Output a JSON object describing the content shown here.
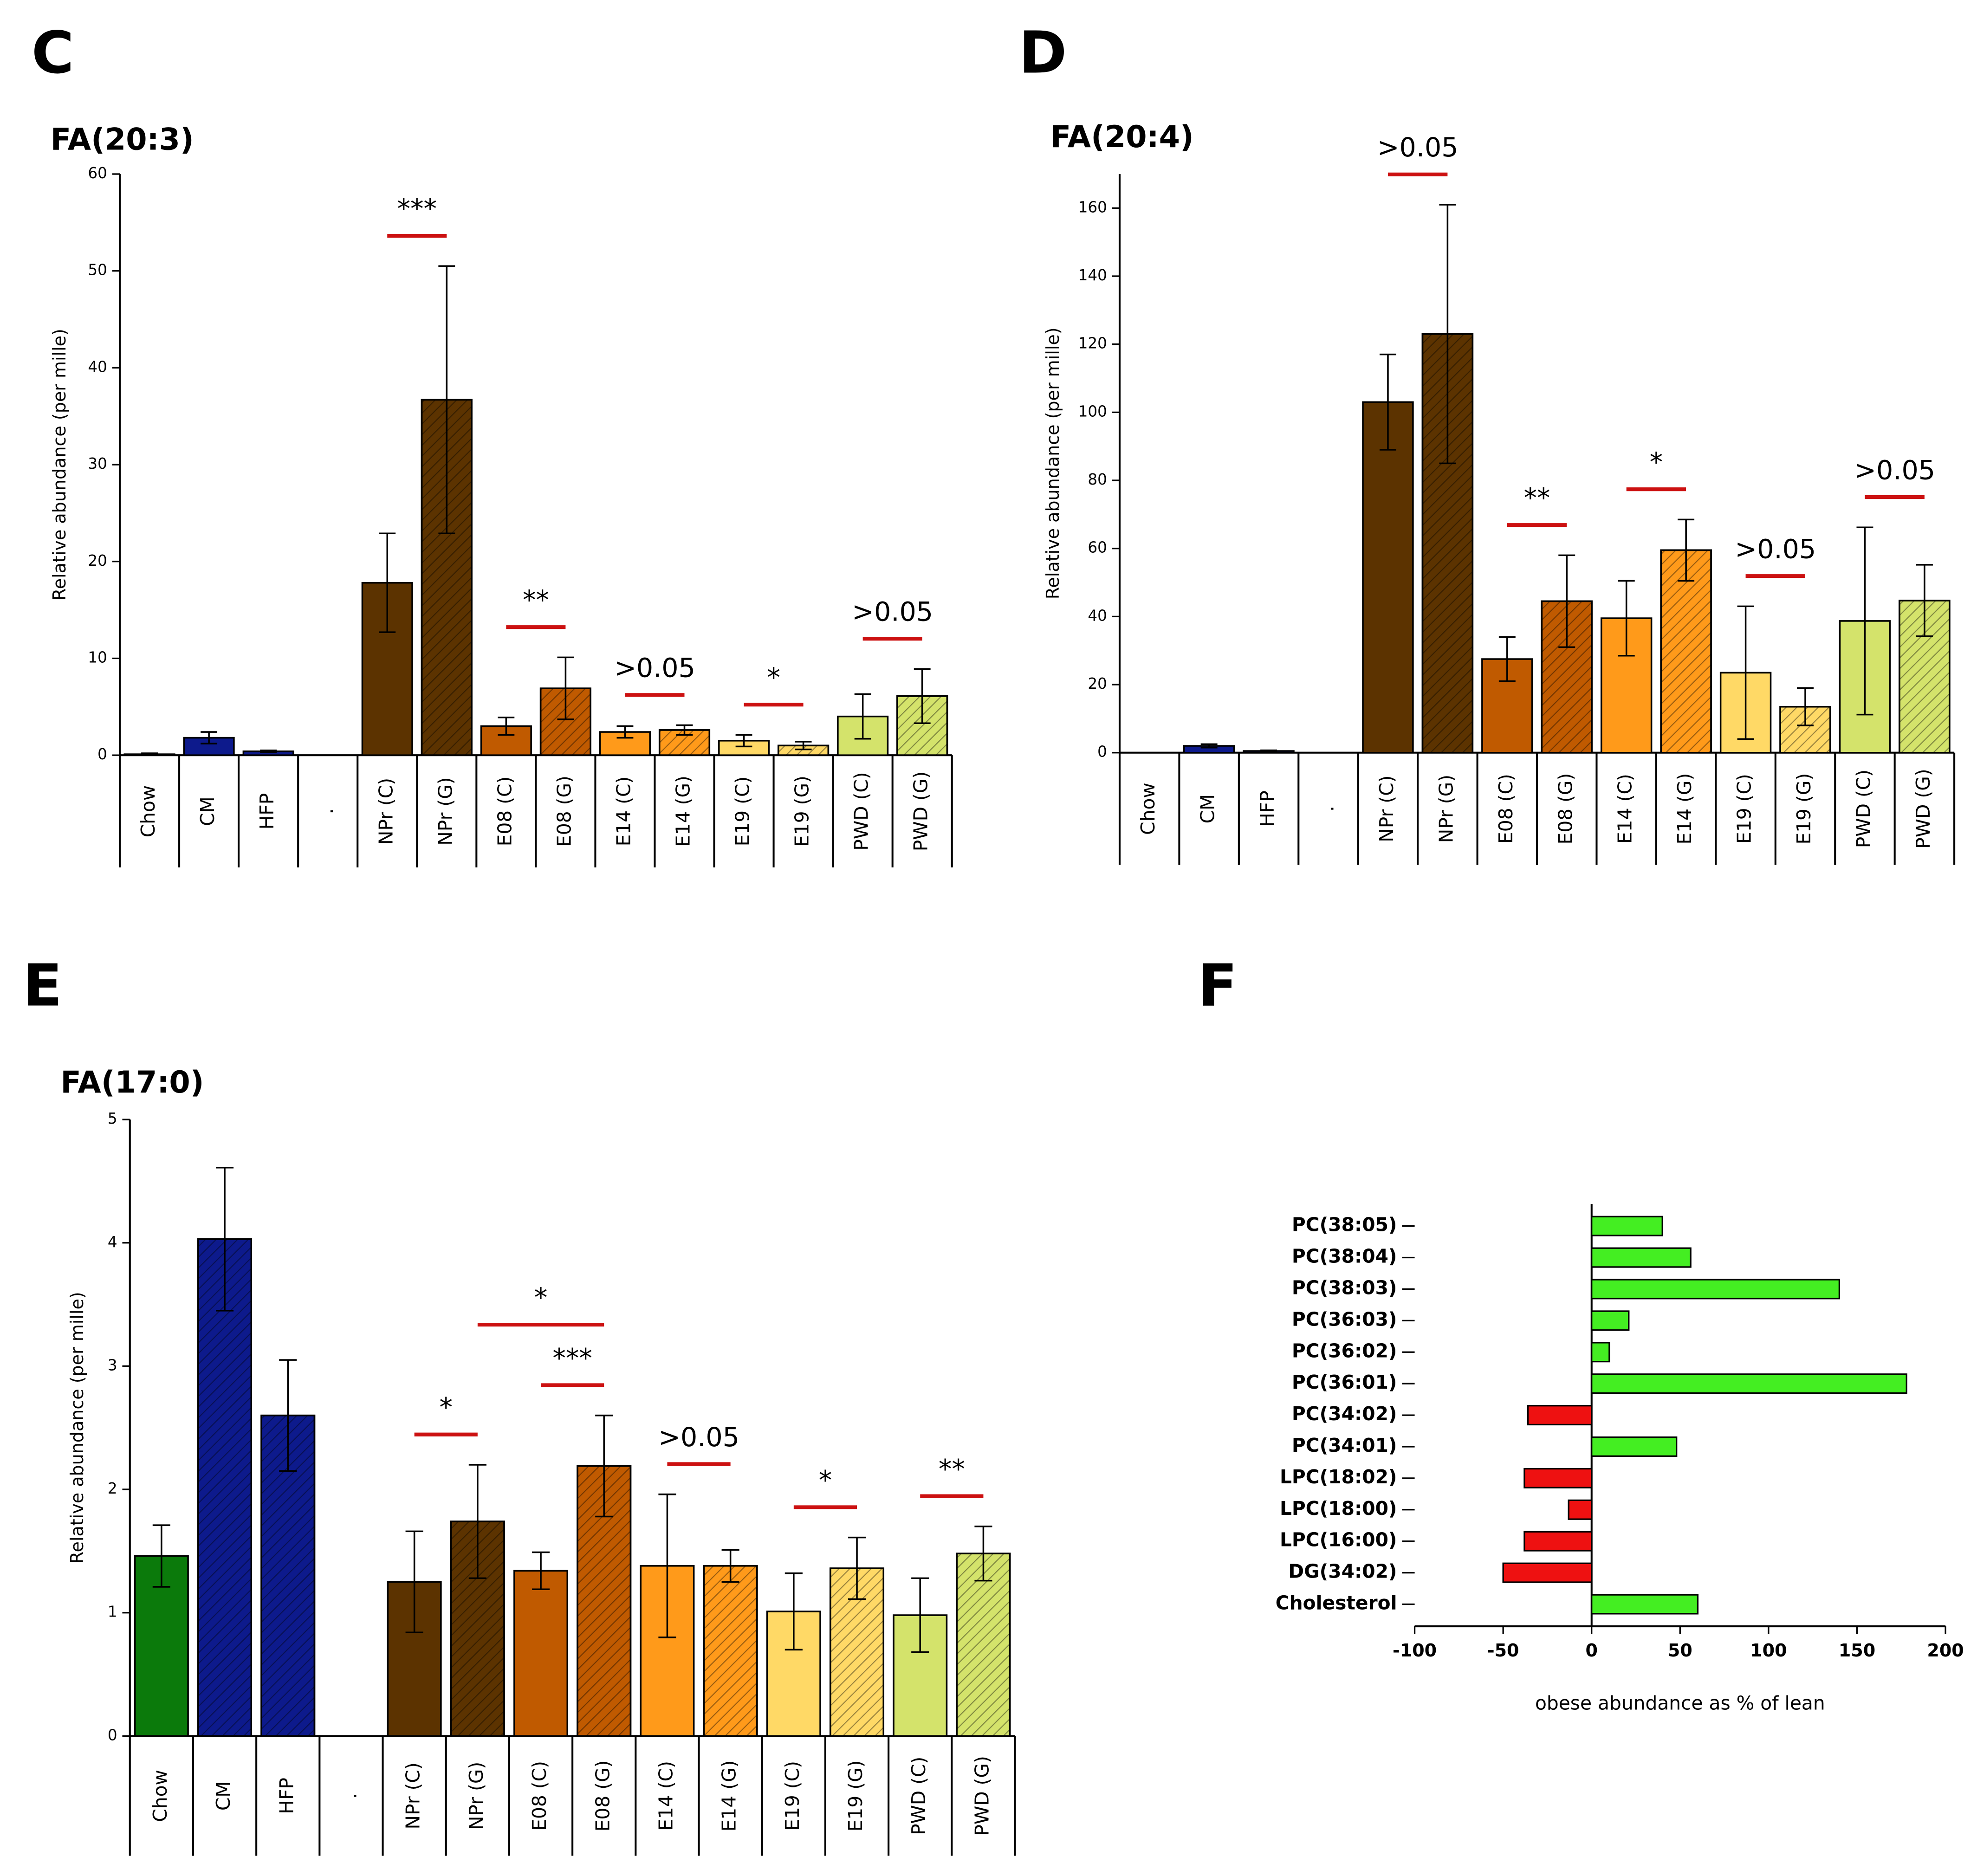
{
  "chart_data": [
    {
      "type": "bar",
      "panel": "C",
      "title": "FA(20:3)",
      "ylabel": "Relative abundance (per mille)",
      "categories": [
        "Chow",
        "CM",
        "HFP",
        ".",
        "NPr (C)",
        "NPr (G)",
        "E08 (C)",
        "E08 (G)",
        "E14 (C)",
        "E14 (G)",
        "E19 (C)",
        "E19 (G)",
        "PWD (C)",
        "PWD (G)"
      ],
      "values": [
        0.1,
        1.8,
        0.4,
        null,
        17.8,
        36.7,
        3.0,
        6.9,
        2.4,
        2.6,
        1.5,
        1.0,
        4.0,
        6.1
      ],
      "errors": [
        0.1,
        0.6,
        0.1,
        null,
        5.1,
        13.8,
        0.9,
        3.2,
        0.6,
        0.5,
        0.6,
        0.4,
        2.3,
        2.8
      ],
      "colors": [
        "#0b7a0b",
        "#0d1a8c",
        "#0d1a8c",
        null,
        "#5c3300",
        "#5c3300",
        "#c05a00",
        "#c05a00",
        "#ff9a1a",
        "#ff9a1a",
        "#ffd966",
        "#ffd966",
        "#d4e36b",
        "#d4e36b"
      ],
      "hatched": [
        false,
        false,
        false,
        false,
        false,
        true,
        false,
        true,
        false,
        true,
        false,
        true,
        false,
        true
      ],
      "ylim": [
        0,
        60
      ],
      "yticks": [
        0,
        10,
        20,
        30,
        40,
        50,
        60
      ],
      "significance": [
        {
          "label": "***",
          "pair": [
            4,
            5
          ]
        },
        {
          "label": "**",
          "pair": [
            6,
            7
          ]
        },
        {
          "label": ">0.05",
          "pair": [
            8,
            9
          ]
        },
        {
          "label": "*",
          "pair": [
            10,
            11
          ]
        },
        {
          "label": ">0.05",
          "pair": [
            12,
            13
          ]
        }
      ]
    },
    {
      "type": "bar",
      "panel": "D",
      "title": "FA(20:4)",
      "ylabel": "Relative abundance (per mille)",
      "categories": [
        "Chow",
        "CM",
        "HFP",
        ".",
        "NPr (C)",
        "NPr (G)",
        "E08 (C)",
        "E08 (G)",
        "E14 (C)",
        "E14 (G)",
        "E19 (C)",
        "E19 (G)",
        "PWD (C)",
        "PWD (G)"
      ],
      "values": [
        0,
        2,
        0.5,
        null,
        103,
        123,
        27.5,
        44.5,
        39.5,
        59.5,
        23.5,
        13.5,
        38.7,
        44.7
      ],
      "errors": [
        0,
        0.5,
        0.2,
        null,
        14,
        38,
        6.5,
        13.5,
        11,
        9,
        19.5,
        5.5,
        27.5,
        10.5
      ],
      "colors": [
        "#0b7a0b",
        "#0d1a8c",
        "#0d1a8c",
        null,
        "#5c3300",
        "#5c3300",
        "#c05a00",
        "#c05a00",
        "#ff9a1a",
        "#ff9a1a",
        "#ffd966",
        "#ffd966",
        "#d4e36b",
        "#d4e36b"
      ],
      "hatched": [
        false,
        false,
        false,
        false,
        false,
        true,
        false,
        true,
        false,
        true,
        false,
        true,
        false,
        true
      ],
      "ylim": [
        0,
        170
      ],
      "yticks": [
        0,
        20,
        40,
        60,
        80,
        100,
        120,
        140,
        160
      ],
      "significance": [
        {
          "label": ">0.05",
          "pair": [
            4,
            5
          ]
        },
        {
          "label": "**",
          "pair": [
            6,
            7
          ]
        },
        {
          "label": "*",
          "pair": [
            8,
            9
          ]
        },
        {
          "label": ">0.05",
          "pair": [
            10,
            11
          ]
        },
        {
          "label": ">0.05",
          "pair": [
            12,
            13
          ]
        }
      ]
    },
    {
      "type": "bar",
      "panel": "E",
      "title": "FA(17:0)",
      "ylabel": "Relative abundance (per mille)",
      "categories": [
        "Chow",
        "CM",
        "HFP",
        ".",
        "NPr (C)",
        "NPr (G)",
        "E08 (C)",
        "E08 (G)",
        "E14 (C)",
        "E14 (G)",
        "E19 (C)",
        "E19 (G)",
        "PWD (C)",
        "PWD (G)"
      ],
      "values": [
        1.46,
        4.03,
        2.6,
        null,
        1.25,
        1.74,
        1.34,
        2.19,
        1.38,
        1.38,
        1.01,
        1.36,
        0.98,
        1.48
      ],
      "errors": [
        0.25,
        0.58,
        0.45,
        null,
        0.41,
        0.46,
        0.15,
        0.41,
        0.58,
        0.13,
        0.31,
        0.25,
        0.3,
        0.22
      ],
      "colors": [
        "#0b7a0b",
        "#0d1a8c",
        "#0d1a8c",
        null,
        "#5c3300",
        "#5c3300",
        "#c05a00",
        "#c05a00",
        "#ff9a1a",
        "#ff9a1a",
        "#ffd966",
        "#ffd966",
        "#d4e36b",
        "#d4e36b"
      ],
      "hatched": [
        false,
        true,
        true,
        false,
        false,
        true,
        false,
        true,
        false,
        true,
        false,
        true,
        false,
        true
      ],
      "ylim": [
        0,
        5
      ],
      "yticks": [
        0,
        1,
        2,
        3,
        4,
        5
      ],
      "significance": [
        {
          "label": "*",
          "pair": [
            4,
            5
          ]
        },
        {
          "label": "***",
          "pair": [
            6,
            7
          ]
        },
        {
          "label": "*",
          "pair": [
            5,
            7
          ]
        },
        {
          "label": ">0.05",
          "pair": [
            8,
            9
          ]
        },
        {
          "label": "*",
          "pair": [
            10,
            11
          ]
        },
        {
          "label": "**",
          "pair": [
            12,
            13
          ]
        }
      ]
    },
    {
      "type": "hbar",
      "panel": "F",
      "xlabel": "obese abundance as % of lean",
      "categories": [
        "PC(38:05)",
        "PC(38:04)",
        "PC(38:03)",
        "PC(36:03)",
        "PC(36:02)",
        "PC(36:01)",
        "PC(34:02)",
        "PC(34:01)",
        "LPC(18:02)",
        "LPC(18:00)",
        "LPC(16:00)",
        "DG(34:02)",
        "Cholesterol"
      ],
      "values": [
        40,
        56,
        140,
        21,
        10,
        178,
        -36,
        48,
        -38,
        -13,
        -38,
        -50,
        60
      ],
      "colors": [
        "#44ee22",
        "#44ee22",
        "#44ee22",
        "#44ee22",
        "#44ee22",
        "#44ee22",
        "#ee1111",
        "#44ee22",
        "#ee1111",
        "#ee1111",
        "#ee1111",
        "#ee1111",
        "#44ee22"
      ],
      "xlim": [
        -100,
        200
      ],
      "xticks": [
        -100,
        -50,
        0,
        50,
        100,
        150,
        200
      ]
    }
  ]
}
